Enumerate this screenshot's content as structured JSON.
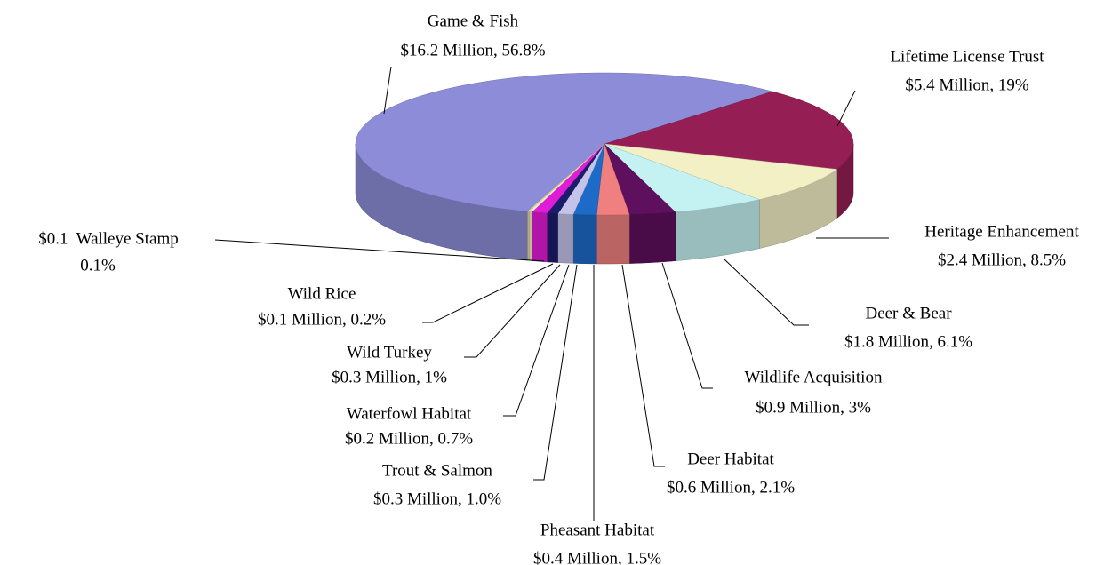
{
  "chart_data": {
    "type": "pie",
    "categories": [
      "Game & Fish",
      "Lifetime License Trust",
      "Heritage Enhancement",
      "Deer & Bear",
      "Wildlife Acquisition",
      "Deer Habitat",
      "Pheasant Habitat",
      "Trout & Salmon",
      "Waterfowl Habitat",
      "Wild Turkey",
      "Wild Rice",
      "$0.1  Walleye Stamp"
    ],
    "values": [
      56.8,
      19,
      8.5,
      6.1,
      3,
      2.1,
      1.5,
      1.0,
      0.7,
      1,
      0.2,
      0.1
    ],
    "value_labels": [
      "$16.2 Million, 56.8%",
      "$5.4 Million, 19%",
      "$2.4 Million, 8.5%",
      "$1.8 Million, 6.1%",
      "$0.9 Million, 3%",
      "$0.6 Million, 2.1%",
      "$0.4 Million, 1.5%",
      "$0.3 Million, 1.0%",
      "$0.2 Million, 0.7%",
      "$0.3 Million, 1%",
      "$0.1 Million, 0.2%",
      "0.1%"
    ],
    "colors": [
      "#8c8cd8",
      "#951f55",
      "#f2f0c4",
      "#c4f2f2",
      "#5e0f5e",
      "#f08080",
      "#1d6ac8",
      "#c4c4ea",
      "#1c1c6c",
      "#e01cd8",
      "#f2f0c4",
      "#e8e0b0"
    ]
  }
}
